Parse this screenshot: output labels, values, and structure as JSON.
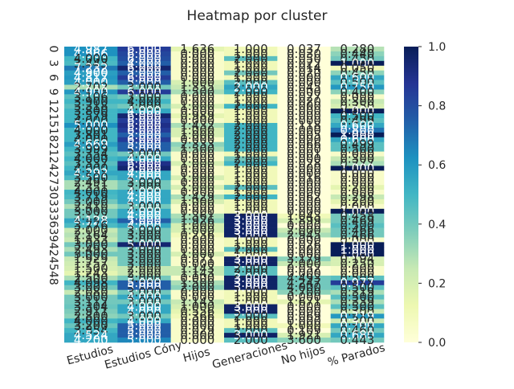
{
  "chart_data": {
    "type": "heatmap",
    "title": "Heatmap por cluster",
    "columns": [
      "Estudios",
      "Estudios Cóny",
      "Hijos",
      "Generaciones",
      "No hijos",
      "% Parados"
    ],
    "row_tick_labels": [
      "0",
      "3",
      "6",
      "9",
      "12",
      "15",
      "18",
      "21",
      "24",
      "27",
      "30",
      "33",
      "36",
      "39",
      "42",
      "45",
      "48"
    ],
    "row_tick_every": 3,
    "annotation_format": "3 decimals",
    "colormap": "YlGnBu",
    "colorbar": {
      "range": [
        0.0,
        1.0
      ],
      "ticks": [
        "0.0",
        "0.2",
        "0.4",
        "0.6",
        "0.8",
        "1.0"
      ]
    },
    "values": [
      [
        4.987,
        6.0,
        1.636,
        1.0,
        0.037,
        0.28
      ],
      [
        4.966,
        6.0,
        0.0,
        1.0,
        0.03,
        0.44
      ],
      [
        4.0,
        6.0,
        0.0,
        2.0,
        0.05,
        0.45
      ],
      [
        3.443,
        4.0,
        0.0,
        1.0,
        0.022,
        1.0
      ],
      [
        7.232,
        6.0,
        0.0,
        1.0,
        0.014,
        0.05
      ],
      [
        4.9,
        5.0,
        0.0,
        2.0,
        0.02,
        0.45
      ],
      [
        4.817,
        6.0,
        0.0,
        1.0,
        0.0,
        0.6
      ],
      [
        4.0,
        5.0,
        1.0,
        2.0,
        0.0,
        0.5
      ],
      [
        2.702,
        3.0,
        1.355,
        2.0,
        0.045,
        0.75
      ],
      [
        4.9,
        6.0,
        1.5,
        2.0,
        0.0,
        0.4
      ],
      [
        3.106,
        3.0,
        0.0,
        1.0,
        0.027,
        0.0
      ],
      [
        3.9,
        4.0,
        0.0,
        1.0,
        0.02,
        0.3
      ],
      [
        3.318,
        3.0,
        1.0,
        2.0,
        0.0,
        0.25
      ],
      [
        3.8,
        4.0,
        0.0,
        1.0,
        0.0,
        1.0
      ],
      [
        3.579,
        6.0,
        0.989,
        1.0,
        0.0,
        0.5
      ],
      [
        4.0,
        6.0,
        0.0,
        1.0,
        0.0,
        0.499
      ],
      [
        5.0,
        6.0,
        1.432,
        2.0,
        0.118,
        0.6
      ],
      [
        4.0,
        6.0,
        1.0,
        2.0,
        0.0,
        0.8
      ],
      [
        3.801,
        5.0,
        1.0,
        2.0,
        0.005,
        1.0
      ],
      [
        4.0,
        6.0,
        0.0,
        2.0,
        0.0,
        0.6
      ],
      [
        4.669,
        5.0,
        2.333,
        2.0,
        0.066,
        0.499
      ],
      [
        3.999,
        5.0,
        1.5,
        2.0,
        0.0,
        0.5
      ],
      [
        3.354,
        3.0,
        0.0,
        1.0,
        0.001,
        0.0
      ],
      [
        4.0,
        4.0,
        0.0,
        2.0,
        0.0,
        0.3
      ],
      [
        3.337,
        6.0,
        1.0,
        2.0,
        0.028,
        0.277
      ],
      [
        4.0,
        6.0,
        0.0,
        1.0,
        0.0,
        1.0
      ],
      [
        4.292,
        4.0,
        0.0,
        1.0,
        0.0,
        0.0
      ],
      [
        3.5,
        4.0,
        1.0,
        1.0,
        0.016,
        0.0
      ],
      [
        2.491,
        3.0,
        0.0,
        1.0,
        0.0,
        0.0
      ],
      [
        2.351,
        3.0,
        1.0,
        2.0,
        0.0,
        0.2
      ],
      [
        4.0,
        4.0,
        0.0,
        1.0,
        0.0,
        0.0
      ],
      [
        3.719,
        4.0,
        1.429,
        2.0,
        0.062,
        0.298
      ],
      [
        3.0,
        4.0,
        1.0,
        1.0,
        0.0,
        0.2
      ],
      [
        2.41,
        3.0,
        0.0,
        1.0,
        0.0,
        0.0
      ],
      [
        3.0,
        4.0,
        0.0,
        1.0,
        0.0,
        1.0
      ],
      [
        3.122,
        4.0,
        1.361,
        3.0,
        1.043,
        0.458
      ],
      [
        4.128,
        5.0,
        1.926,
        3.0,
        1.899,
        0.469
      ],
      [
        3.776,
        4.0,
        1.0,
        3.0,
        0.0,
        0.5
      ],
      [
        2.0,
        3.0,
        1.0,
        3.0,
        2.0,
        0.466
      ],
      [
        2.164,
        3.0,
        0.236,
        3.0,
        2.945,
        0.466
      ],
      [
        1.833,
        3.0,
        0.0,
        1.0,
        0.0,
        0.0
      ],
      [
        3.0,
        5.0,
        0.0,
        1.0,
        0.026,
        1.0
      ],
      [
        2.493,
        3.0,
        0.0,
        2.0,
        0.0,
        1.0
      ],
      [
        3.0,
        3.0,
        1.0,
        1.0,
        0.0,
        1.0
      ],
      [
        1.929,
        3.0,
        0.071,
        3.0,
        3.179,
        0.194
      ],
      [
        1.757,
        3.0,
        0.0,
        3.0,
        2.0,
        0.25
      ],
      [
        1.5,
        2.0,
        1.143,
        2.0,
        0.052,
        0.0
      ],
      [
        1.243,
        2.0,
        1.143,
        2.0,
        0.0,
        0.0
      ],
      [
        2.5,
        3.0,
        0.0,
        3.0,
        4.493,
        0.5
      ],
      [
        4.098,
        5.0,
        1.5,
        3.0,
        4.247,
        0.977
      ],
      [
        3.0,
        5.0,
        2.0,
        3.0,
        4.0,
        0.5
      ],
      [
        2.08,
        3.0,
        0.0,
        1.0,
        3.7,
        0.319
      ],
      [
        3.0,
        4.0,
        0.0,
        1.0,
        0.0,
        0.5
      ],
      [
        3.112,
        3.0,
        1.143,
        1.0,
        1.671,
        0.339
      ],
      [
        3.304,
        4.0,
        1.0,
        3.0,
        0.0,
        0.5
      ],
      [
        2.911,
        4.0,
        0.556,
        3.0,
        0.0,
        0.3
      ],
      [
        2.8,
        3.0,
        0.366,
        2.0,
        0.069,
        0.719
      ],
      [
        4.0,
        4.0,
        0.0,
        1.0,
        0.0,
        0.3
      ],
      [
        3.2,
        5.0,
        0.0,
        1.0,
        1.0,
        0.7
      ],
      [
        3.854,
        5.0,
        0.029,
        2.0,
        0.109,
        0.46
      ],
      [
        4.524,
        5.0,
        0.0,
        3.0,
        1.921,
        0.68
      ],
      [
        4.2,
        5.0,
        0.0,
        2.0,
        3.6,
        0.443
      ]
    ],
    "color_values": [
      [
        0.62,
        0.85,
        0.15,
        0.1,
        0.0,
        0.28
      ],
      [
        0.62,
        0.82,
        0.05,
        0.1,
        0.0,
        0.35
      ],
      [
        0.5,
        0.8,
        0.05,
        0.45,
        0.0,
        0.4
      ],
      [
        0.48,
        0.75,
        0.05,
        0.1,
        0.0,
        1.0
      ],
      [
        0.68,
        0.95,
        0.05,
        0.1,
        0.0,
        0.1
      ],
      [
        0.58,
        0.75,
        0.05,
        0.4,
        0.0,
        0.35
      ],
      [
        0.6,
        0.85,
        0.05,
        0.1,
        0.0,
        0.55
      ],
      [
        0.58,
        0.75,
        0.2,
        0.45,
        0.0,
        0.45
      ],
      [
        0.3,
        0.4,
        0.25,
        0.55,
        0.0,
        0.6
      ],
      [
        0.6,
        0.85,
        0.3,
        0.5,
        0.0,
        0.35
      ],
      [
        0.45,
        0.4,
        0.05,
        0.1,
        0.0,
        0.05
      ],
      [
        0.5,
        0.5,
        0.05,
        0.1,
        0.0,
        0.25
      ],
      [
        0.45,
        0.4,
        0.2,
        0.5,
        0.0,
        0.2
      ],
      [
        0.5,
        0.55,
        0.05,
        0.1,
        0.0,
        1.0
      ],
      [
        0.5,
        0.95,
        0.15,
        0.1,
        0.0,
        0.5
      ],
      [
        0.5,
        0.85,
        0.05,
        0.1,
        0.0,
        0.45
      ],
      [
        0.62,
        0.9,
        0.3,
        0.5,
        0.0,
        0.55
      ],
      [
        0.5,
        0.85,
        0.2,
        0.5,
        0.0,
        0.7
      ],
      [
        0.5,
        0.75,
        0.2,
        0.5,
        0.0,
        1.0
      ],
      [
        0.5,
        0.85,
        0.05,
        0.5,
        0.0,
        0.55
      ],
      [
        0.58,
        0.75,
        0.35,
        0.5,
        0.0,
        0.45
      ],
      [
        0.5,
        0.75,
        0.3,
        0.5,
        0.0,
        0.45
      ],
      [
        0.45,
        0.4,
        0.05,
        0.1,
        0.0,
        0.05
      ],
      [
        0.5,
        0.55,
        0.05,
        0.4,
        0.0,
        0.25
      ],
      [
        0.45,
        0.9,
        0.2,
        0.5,
        0.0,
        0.3
      ],
      [
        0.5,
        0.95,
        0.05,
        0.1,
        0.0,
        1.0
      ],
      [
        0.55,
        0.55,
        0.05,
        0.1,
        0.0,
        0.05
      ],
      [
        0.48,
        0.55,
        0.2,
        0.1,
        0.0,
        0.05
      ],
      [
        0.3,
        0.4,
        0.05,
        0.1,
        0.0,
        0.05
      ],
      [
        0.3,
        0.4,
        0.2,
        0.45,
        0.0,
        0.15
      ],
      [
        0.5,
        0.55,
        0.05,
        0.1,
        0.0,
        0.05
      ],
      [
        0.48,
        0.55,
        0.3,
        0.5,
        0.0,
        0.25
      ],
      [
        0.4,
        0.55,
        0.2,
        0.1,
        0.0,
        0.15
      ],
      [
        0.3,
        0.4,
        0.05,
        0.1,
        0.0,
        0.05
      ],
      [
        0.4,
        0.55,
        0.05,
        0.1,
        0.0,
        1.0
      ],
      [
        0.4,
        0.55,
        0.3,
        0.97,
        0.1,
        0.4
      ],
      [
        0.55,
        0.75,
        0.35,
        0.97,
        0.2,
        0.4
      ],
      [
        0.48,
        0.55,
        0.2,
        0.97,
        0.0,
        0.45
      ],
      [
        0.25,
        0.4,
        0.2,
        0.97,
        0.25,
        0.4
      ],
      [
        0.28,
        0.4,
        0.1,
        0.97,
        0.3,
        0.4
      ],
      [
        0.25,
        0.4,
        0.05,
        0.1,
        0.0,
        0.05
      ],
      [
        0.4,
        0.95,
        0.05,
        0.1,
        0.0,
        1.0
      ],
      [
        0.3,
        0.4,
        0.05,
        0.45,
        0.0,
        1.0
      ],
      [
        0.4,
        0.4,
        0.2,
        0.1,
        0.0,
        1.0
      ],
      [
        0.25,
        0.4,
        0.05,
        0.97,
        0.35,
        0.2
      ],
      [
        0.22,
        0.4,
        0.05,
        0.97,
        0.25,
        0.2
      ],
      [
        0.2,
        0.25,
        0.25,
        0.45,
        0.0,
        0.05
      ],
      [
        0.15,
        0.25,
        0.25,
        0.45,
        0.0,
        0.05
      ],
      [
        0.3,
        0.4,
        0.05,
        0.97,
        0.4,
        0.45
      ],
      [
        0.5,
        0.75,
        0.3,
        0.97,
        0.4,
        0.85
      ],
      [
        0.4,
        0.75,
        0.35,
        0.97,
        0.4,
        0.45
      ],
      [
        0.25,
        0.4,
        0.05,
        0.1,
        0.35,
        0.3
      ],
      [
        0.4,
        0.55,
        0.05,
        0.1,
        0.0,
        0.45
      ],
      [
        0.4,
        0.4,
        0.25,
        0.1,
        0.15,
        0.3
      ],
      [
        0.42,
        0.55,
        0.2,
        0.97,
        0.0,
        0.45
      ],
      [
        0.38,
        0.55,
        0.15,
        0.97,
        0.0,
        0.25
      ],
      [
        0.35,
        0.4,
        0.1,
        0.45,
        0.0,
        0.6
      ],
      [
        0.5,
        0.55,
        0.05,
        0.1,
        0.0,
        0.25
      ],
      [
        0.42,
        0.75,
        0.05,
        0.1,
        0.1,
        0.55
      ],
      [
        0.5,
        0.75,
        0.05,
        0.45,
        0.0,
        0.4
      ],
      [
        0.55,
        0.75,
        0.05,
        0.97,
        0.2,
        0.55
      ],
      [
        0.55,
        0.65,
        0.05,
        0.45,
        0.35,
        0.4
      ]
    ]
  }
}
